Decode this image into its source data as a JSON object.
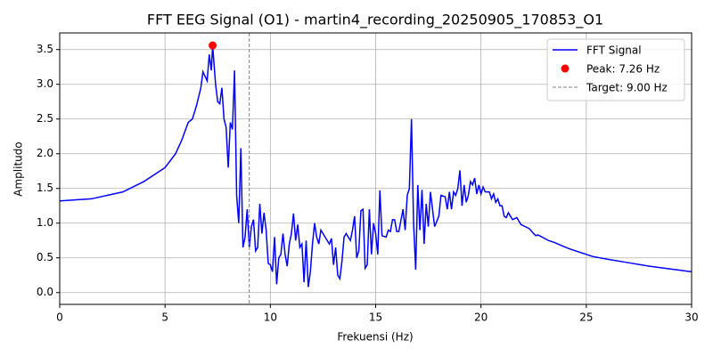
{
  "chart_data": {
    "type": "line",
    "title": "FFT EEG Signal (O1) - martin4_recording_20250905_170853_O1",
    "xlabel": "Frekuensi (Hz)",
    "ylabel": "Amplitudo",
    "xlim": [
      0,
      30
    ],
    "ylim": [
      -0.17,
      3.74
    ],
    "xticks": [
      0,
      5,
      10,
      15,
      20,
      25,
      30
    ],
    "yticks": [
      {
        "value": 0,
        "label": "0.0"
      },
      0.5,
      {
        "value": 1,
        "label": "1.0"
      },
      1.5,
      {
        "value": 2,
        "label": "2.0"
      },
      2.5,
      {
        "value": 3,
        "label": "3.0"
      },
      3.5
    ],
    "grid": true,
    "legend": "upper right",
    "series": [
      {
        "name": "FFT Signal",
        "color": "#0000ff",
        "x": [
          0,
          1.5,
          3,
          4,
          5,
          5.5,
          5.8,
          6.1,
          6.3,
          6.5,
          6.7,
          6.8,
          7.0,
          7.1,
          7.2,
          7.26,
          7.4,
          7.5,
          7.6,
          7.7,
          7.8,
          7.9,
          8.0,
          8.1,
          8.2,
          8.3,
          8.4,
          8.5,
          8.6,
          8.7,
          8.8,
          8.9,
          9.0,
          9.1,
          9.2,
          9.3,
          9.4,
          9.5,
          9.6,
          9.7,
          9.8,
          9.9,
          10.0,
          10.1,
          10.2,
          10.3,
          10.4,
          10.5,
          10.6,
          10.7,
          10.8,
          10.9,
          11.0,
          11.1,
          11.2,
          11.3,
          11.4,
          11.5,
          11.6,
          11.7,
          11.8,
          11.9,
          12.0,
          12.1,
          12.2,
          12.3,
          12.4,
          12.6,
          12.8,
          12.9,
          13.0,
          13.1,
          13.2,
          13.3,
          13.4,
          13.5,
          13.6,
          13.8,
          13.9,
          14.0,
          14.1,
          14.2,
          14.3,
          14.4,
          14.5,
          14.6,
          14.7,
          14.8,
          14.9,
          15.0,
          15.1,
          15.2,
          15.3,
          15.5,
          15.6,
          15.7,
          15.8,
          15.9,
          16.0,
          16.1,
          16.3,
          16.4,
          16.5,
          16.6,
          16.7,
          16.8,
          16.9,
          17.0,
          17.1,
          17.2,
          17.3,
          17.4,
          17.5,
          17.6,
          17.7,
          17.8,
          18.0,
          18.1,
          18.3,
          18.4,
          18.5,
          18.6,
          18.7,
          18.8,
          18.9,
          19.0,
          19.1,
          19.2,
          19.3,
          19.4,
          19.5,
          19.6,
          19.7,
          19.8,
          19.9,
          20.0,
          20.1,
          20.2,
          20.4,
          20.5,
          20.6,
          20.7,
          20.8,
          20.9,
          21.0,
          21.1,
          21.2,
          21.3,
          21.4,
          21.5,
          21.7,
          21.9,
          22.1,
          22.3,
          22.5,
          22.6,
          22.7,
          22.9,
          23.2,
          23.5,
          23.8,
          24.2,
          24.7,
          25.0,
          25.3,
          26,
          27,
          28,
          29,
          30
        ],
        "values": [
          1.32,
          1.35,
          1.45,
          1.6,
          1.8,
          2.0,
          2.2,
          2.45,
          2.5,
          2.7,
          2.95,
          3.18,
          3.05,
          3.43,
          3.2,
          3.56,
          3.0,
          2.75,
          2.72,
          2.95,
          2.5,
          2.38,
          1.8,
          2.45,
          2.35,
          3.2,
          1.4,
          1.0,
          2.08,
          0.65,
          0.8,
          1.2,
          0.65,
          0.95,
          1.05,
          0.6,
          0.65,
          1.28,
          0.85,
          1.15,
          0.9,
          0.42,
          0.4,
          0.3,
          0.8,
          0.12,
          0.5,
          0.55,
          0.85,
          0.55,
          0.38,
          0.7,
          0.85,
          1.14,
          0.75,
          0.98,
          0.65,
          0.7,
          0.15,
          0.75,
          0.08,
          0.3,
          0.7,
          1.0,
          0.8,
          0.7,
          0.9,
          0.8,
          0.7,
          0.78,
          0.4,
          0.65,
          0.25,
          0.2,
          0.45,
          0.8,
          0.85,
          0.75,
          0.9,
          1.1,
          0.5,
          0.6,
          1.18,
          1.2,
          0.35,
          0.4,
          1.2,
          0.55,
          1.0,
          0.85,
          0.55,
          1.47,
          0.82,
          0.8,
          0.9,
          0.88,
          1.05,
          1.05,
          0.88,
          0.88,
          1.2,
          0.9,
          1.4,
          1.5,
          2.5,
          1.0,
          0.33,
          1.55,
          0.9,
          1.48,
          0.7,
          1.28,
          0.95,
          1.45,
          1.2,
          0.95,
          1.1,
          1.4,
          1.38,
          1.2,
          1.45,
          1.2,
          1.45,
          1.4,
          1.5,
          1.76,
          1.25,
          1.55,
          1.3,
          1.4,
          1.6,
          1.55,
          1.65,
          1.42,
          1.55,
          1.42,
          1.52,
          1.45,
          1.45,
          1.35,
          1.42,
          1.3,
          1.35,
          1.25,
          1.25,
          1.1,
          1.08,
          1.15,
          1.1,
          1.05,
          1.08,
          0.98,
          0.95,
          0.92,
          0.85,
          0.82,
          0.83,
          0.8,
          0.75,
          0.72,
          0.68,
          0.63,
          0.58,
          0.55,
          0.52,
          0.48,
          0.43,
          0.38,
          0.34,
          0.3
        ]
      }
    ],
    "peak": {
      "name": "Peak: 7.26 Hz",
      "color": "#ff0000",
      "x": 7.26,
      "value": 3.56
    },
    "target": {
      "name": "Target: 9.00 Hz",
      "color": "#808080",
      "x": 9
    }
  }
}
